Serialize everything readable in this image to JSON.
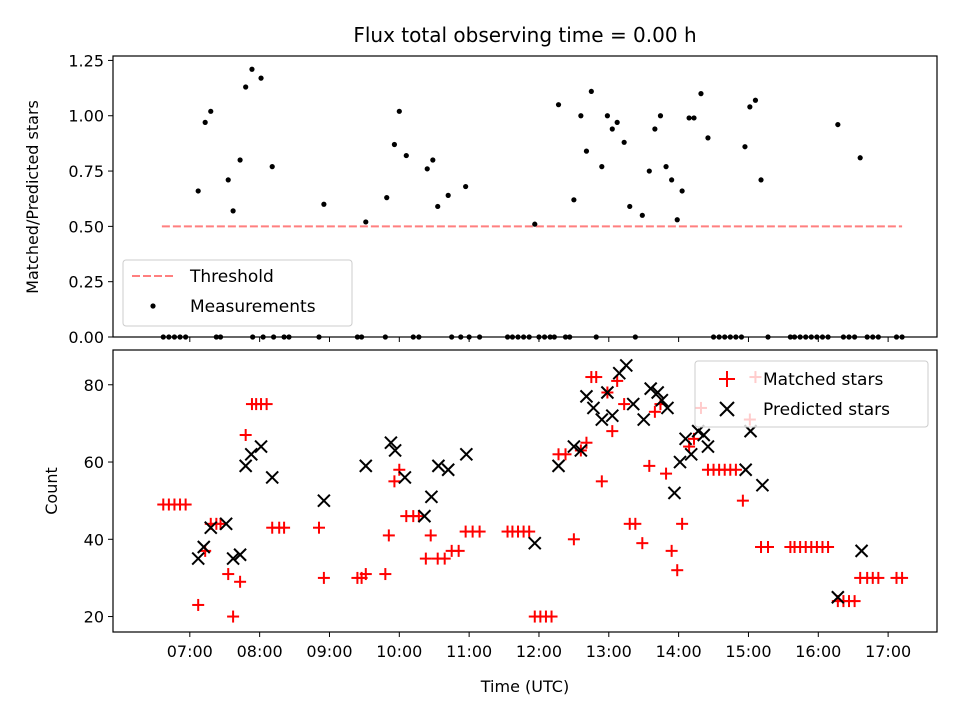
{
  "chart_data": [
    {
      "type": "scatter",
      "title": "Flux total observing time = 0.00 h",
      "xlabel": "",
      "ylabel": "Matched/Predicted stars",
      "ylim": [
        0,
        1.27
      ],
      "yticks": [
        "0.00",
        "0.25",
        "0.50",
        "0.75",
        "1.00",
        "1.25"
      ],
      "legend_position": "lower-left",
      "threshold": {
        "name": "Threshold",
        "value": 0.5,
        "x_range": [
          6.6,
          17.2
        ],
        "color": "#ff7f7f"
      },
      "series": [
        {
          "name": "Measurements",
          "color": "#000000",
          "points": [
            [
              6.62,
              0
            ],
            [
              6.7,
              0
            ],
            [
              6.78,
              0
            ],
            [
              6.86,
              0
            ],
            [
              6.94,
              0
            ],
            [
              7.12,
              0.66
            ],
            [
              7.22,
              0.97
            ],
            [
              7.3,
              1.02
            ],
            [
              7.38,
              0
            ],
            [
              7.44,
              0
            ],
            [
              7.55,
              0.71
            ],
            [
              7.62,
              0.57
            ],
            [
              7.72,
              0.8
            ],
            [
              7.8,
              1.13
            ],
            [
              7.89,
              1.21
            ],
            [
              7.9,
              0
            ],
            [
              8.02,
              1.17
            ],
            [
              8.05,
              0
            ],
            [
              8.18,
              0.77
            ],
            [
              8.2,
              0
            ],
            [
              8.35,
              0
            ],
            [
              8.42,
              0
            ],
            [
              8.85,
              0
            ],
            [
              8.92,
              0.6
            ],
            [
              9.4,
              0
            ],
            [
              9.46,
              0
            ],
            [
              9.52,
              0.52
            ],
            [
              9.8,
              0
            ],
            [
              9.82,
              0.63
            ],
            [
              9.93,
              0.87
            ],
            [
              10.0,
              1.02
            ],
            [
              10.1,
              0.82
            ],
            [
              10.2,
              0
            ],
            [
              10.28,
              0
            ],
            [
              10.4,
              0.76
            ],
            [
              10.48,
              0.8
            ],
            [
              10.55,
              0.59
            ],
            [
              10.7,
              0.64
            ],
            [
              10.75,
              0
            ],
            [
              10.88,
              0
            ],
            [
              10.95,
              0.68
            ],
            [
              11.0,
              0
            ],
            [
              11.15,
              0
            ],
            [
              11.55,
              0
            ],
            [
              11.62,
              0
            ],
            [
              11.7,
              0
            ],
            [
              11.78,
              0
            ],
            [
              11.86,
              0
            ],
            [
              11.94,
              0.51
            ],
            [
              12.0,
              0
            ],
            [
              12.08,
              0
            ],
            [
              12.16,
              0
            ],
            [
              12.22,
              0
            ],
            [
              12.28,
              1.05
            ],
            [
              12.38,
              0
            ],
            [
              12.44,
              0
            ],
            [
              12.5,
              0.62
            ],
            [
              12.6,
              1.0
            ],
            [
              12.68,
              0.84
            ],
            [
              12.75,
              1.11
            ],
            [
              12.82,
              0
            ],
            [
              12.9,
              0.77
            ],
            [
              12.98,
              1.0
            ],
            [
              13.05,
              0.94
            ],
            [
              13.12,
              0.97
            ],
            [
              13.22,
              0.88
            ],
            [
              13.3,
              0.59
            ],
            [
              13.38,
              0
            ],
            [
              13.48,
              0.55
            ],
            [
              13.58,
              0.75
            ],
            [
              13.66,
              0.94
            ],
            [
              13.74,
              1.0
            ],
            [
              13.82,
              0.77
            ],
            [
              13.9,
              0.71
            ],
            [
              13.98,
              0.53
            ],
            [
              14.05,
              0.66
            ],
            [
              14.15,
              0.99
            ],
            [
              14.22,
              0.99
            ],
            [
              14.32,
              1.1
            ],
            [
              14.42,
              0.9
            ],
            [
              14.5,
              0
            ],
            [
              14.58,
              0
            ],
            [
              14.66,
              0
            ],
            [
              14.74,
              0
            ],
            [
              14.82,
              0
            ],
            [
              14.9,
              0
            ],
            [
              14.95,
              0.86
            ],
            [
              15.02,
              1.04
            ],
            [
              15.1,
              1.07
            ],
            [
              15.18,
              0.71
            ],
            [
              15.28,
              0
            ],
            [
              15.6,
              0
            ],
            [
              15.66,
              0
            ],
            [
              15.74,
              0
            ],
            [
              15.82,
              0
            ],
            [
              15.9,
              0
            ],
            [
              15.98,
              0
            ],
            [
              16.06,
              0
            ],
            [
              16.14,
              0
            ],
            [
              16.28,
              0.96
            ],
            [
              16.36,
              0
            ],
            [
              16.44,
              0
            ],
            [
              16.52,
              0
            ],
            [
              16.6,
              0.81
            ],
            [
              16.7,
              0
            ],
            [
              16.78,
              0
            ],
            [
              16.86,
              0
            ],
            [
              17.12,
              0
            ],
            [
              17.2,
              0
            ]
          ]
        }
      ]
    },
    {
      "type": "scatter",
      "title": "",
      "xlabel": "Time (UTC)",
      "ylabel": "Count",
      "ylim": [
        16,
        89
      ],
      "yticks": [
        "20",
        "40",
        "60",
        "80"
      ],
      "xlim": [
        5.9,
        17.7
      ],
      "xtick_values": [
        7,
        8,
        9,
        10,
        11,
        12,
        13,
        14,
        15,
        16,
        17
      ],
      "xticks": [
        "07:00",
        "08:00",
        "09:00",
        "10:00",
        "11:00",
        "12:00",
        "13:00",
        "14:00",
        "15:00",
        "16:00",
        "17:00"
      ],
      "legend_position": "upper-right",
      "series": [
        {
          "name": "Matched stars",
          "color": "#ff0000",
          "marker": "+",
          "points": [
            [
              6.62,
              49
            ],
            [
              6.7,
              49
            ],
            [
              6.78,
              49
            ],
            [
              6.86,
              49
            ],
            [
              6.94,
              49
            ],
            [
              7.12,
              23
            ],
            [
              7.22,
              37
            ],
            [
              7.3,
              44
            ],
            [
              7.38,
              44
            ],
            [
              7.44,
              44
            ],
            [
              7.55,
              31
            ],
            [
              7.62,
              20
            ],
            [
              7.72,
              29
            ],
            [
              7.8,
              67
            ],
            [
              7.89,
              75
            ],
            [
              7.95,
              75
            ],
            [
              8.02,
              75
            ],
            [
              8.1,
              75
            ],
            [
              8.18,
              43
            ],
            [
              8.28,
              43
            ],
            [
              8.35,
              43
            ],
            [
              8.85,
              43
            ],
            [
              8.92,
              30
            ],
            [
              9.4,
              30
            ],
            [
              9.46,
              30
            ],
            [
              9.52,
              31
            ],
            [
              9.8,
              31
            ],
            [
              9.85,
              41
            ],
            [
              9.93,
              55
            ],
            [
              10.0,
              58
            ],
            [
              10.1,
              46
            ],
            [
              10.2,
              46
            ],
            [
              10.28,
              46
            ],
            [
              10.38,
              35
            ],
            [
              10.45,
              41
            ],
            [
              10.55,
              35
            ],
            [
              10.65,
              35
            ],
            [
              10.75,
              37
            ],
            [
              10.85,
              37
            ],
            [
              10.95,
              42
            ],
            [
              11.05,
              42
            ],
            [
              11.15,
              42
            ],
            [
              11.55,
              42
            ],
            [
              11.62,
              42
            ],
            [
              11.7,
              42
            ],
            [
              11.78,
              42
            ],
            [
              11.86,
              42
            ],
            [
              11.94,
              20
            ],
            [
              12.02,
              20
            ],
            [
              12.1,
              20
            ],
            [
              12.18,
              20
            ],
            [
              12.28,
              62
            ],
            [
              12.38,
              62
            ],
            [
              12.5,
              40
            ],
            [
              12.6,
              63
            ],
            [
              12.68,
              65
            ],
            [
              12.75,
              82
            ],
            [
              12.82,
              82
            ],
            [
              12.9,
              55
            ],
            [
              12.98,
              78
            ],
            [
              13.05,
              68
            ],
            [
              13.12,
              81
            ],
            [
              13.22,
              75
            ],
            [
              13.3,
              44
            ],
            [
              13.38,
              44
            ],
            [
              13.48,
              39
            ],
            [
              13.58,
              59
            ],
            [
              13.66,
              73
            ],
            [
              13.74,
              75
            ],
            [
              13.82,
              57
            ],
            [
              13.9,
              37
            ],
            [
              13.98,
              32
            ],
            [
              14.05,
              44
            ],
            [
              14.15,
              64
            ],
            [
              14.22,
              66
            ],
            [
              14.32,
              74
            ],
            [
              14.42,
              58
            ],
            [
              14.5,
              58
            ],
            [
              14.58,
              58
            ],
            [
              14.66,
              58
            ],
            [
              14.74,
              58
            ],
            [
              14.82,
              58
            ],
            [
              14.92,
              50
            ],
            [
              15.02,
              71
            ],
            [
              15.1,
              82
            ],
            [
              15.18,
              38
            ],
            [
              15.28,
              38
            ],
            [
              15.6,
              38
            ],
            [
              15.66,
              38
            ],
            [
              15.74,
              38
            ],
            [
              15.82,
              38
            ],
            [
              15.9,
              38
            ],
            [
              15.98,
              38
            ],
            [
              16.06,
              38
            ],
            [
              16.14,
              38
            ],
            [
              16.28,
              24
            ],
            [
              16.36,
              24
            ],
            [
              16.44,
              24
            ],
            [
              16.52,
              24
            ],
            [
              16.6,
              30
            ],
            [
              16.7,
              30
            ],
            [
              16.78,
              30
            ],
            [
              16.86,
              30
            ],
            [
              17.12,
              30
            ],
            [
              17.2,
              30
            ]
          ]
        },
        {
          "name": "Predicted stars",
          "color": "#000000",
          "marker": "x",
          "points": [
            [
              7.12,
              35
            ],
            [
              7.2,
              38
            ],
            [
              7.3,
              43
            ],
            [
              7.52,
              44
            ],
            [
              7.62,
              35
            ],
            [
              7.72,
              36
            ],
            [
              7.8,
              59
            ],
            [
              7.88,
              62
            ],
            [
              8.02,
              64
            ],
            [
              8.18,
              56
            ],
            [
              8.92,
              50
            ],
            [
              9.52,
              59
            ],
            [
              9.88,
              65
            ],
            [
              9.94,
              63
            ],
            [
              10.08,
              56
            ],
            [
              10.36,
              46
            ],
            [
              10.46,
              51
            ],
            [
              10.56,
              59
            ],
            [
              10.7,
              58
            ],
            [
              10.96,
              62
            ],
            [
              11.94,
              39
            ],
            [
              12.28,
              59
            ],
            [
              12.5,
              64
            ],
            [
              12.6,
              63
            ],
            [
              12.68,
              77
            ],
            [
              12.78,
              74
            ],
            [
              12.9,
              71
            ],
            [
              12.98,
              78
            ],
            [
              13.05,
              72
            ],
            [
              13.15,
              83
            ],
            [
              13.25,
              85
            ],
            [
              13.35,
              75
            ],
            [
              13.5,
              71
            ],
            [
              13.6,
              79
            ],
            [
              13.7,
              78
            ],
            [
              13.76,
              76
            ],
            [
              13.84,
              74
            ],
            [
              13.94,
              52
            ],
            [
              14.02,
              60
            ],
            [
              14.1,
              66
            ],
            [
              14.18,
              62
            ],
            [
              14.28,
              68
            ],
            [
              14.36,
              67
            ],
            [
              14.42,
              64
            ],
            [
              14.96,
              58
            ],
            [
              15.03,
              68
            ],
            [
              15.2,
              54
            ],
            [
              16.28,
              25
            ],
            [
              16.62,
              37
            ]
          ]
        }
      ]
    }
  ]
}
